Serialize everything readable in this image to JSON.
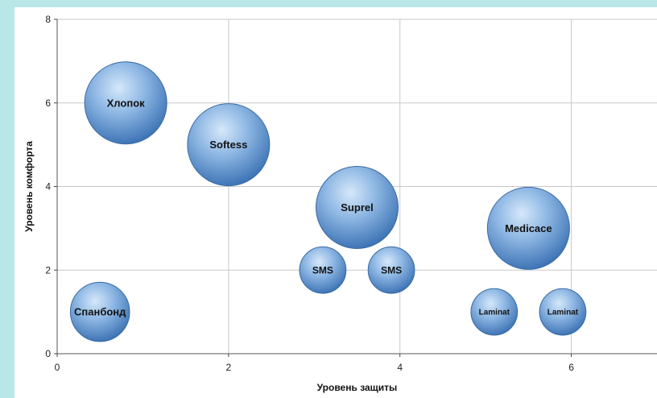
{
  "colors": {
    "page_background": "#b9e6e6",
    "plot_background": "#ffffff",
    "gridline": "#c8c8c8",
    "bubble_light": "#d6e8fa",
    "bubble_mid": "#8fb8e4",
    "bubble_dark": "#3f75b6",
    "bubble_stroke": "#3a6aa3"
  },
  "chart_data": {
    "type": "bubble",
    "xlabel": "Уровень защиты",
    "ylabel": "Уровень комфорта",
    "xlim": [
      0,
      7
    ],
    "ylim": [
      0,
      8
    ],
    "x_ticks": [
      "0",
      "2",
      "4",
      "6"
    ],
    "y_ticks": [
      "0",
      "2",
      "4",
      "6",
      "8"
    ],
    "grid": true,
    "points": [
      {
        "label": "Хлопок",
        "x": 0.8,
        "y": 6,
        "size": 10
      },
      {
        "label": "Softess",
        "x": 2,
        "y": 5,
        "size": 10
      },
      {
        "label": "Suprel",
        "x": 3.5,
        "y": 3.5,
        "size": 10
      },
      {
        "label": "Medicace",
        "x": 5.5,
        "y": 3,
        "size": 10
      },
      {
        "label": "SMS",
        "x": 3.1,
        "y": 2,
        "size": 3.2
      },
      {
        "label": "SMS",
        "x": 3.9,
        "y": 2,
        "size": 3.2
      },
      {
        "label": "Спанбонд",
        "x": 0.5,
        "y": 1,
        "size": 5.2
      },
      {
        "label": "Laminat",
        "x": 5.1,
        "y": 1,
        "size": 3.2
      },
      {
        "label": "Laminat",
        "x": 5.9,
        "y": 1,
        "size": 3.2
      }
    ]
  }
}
